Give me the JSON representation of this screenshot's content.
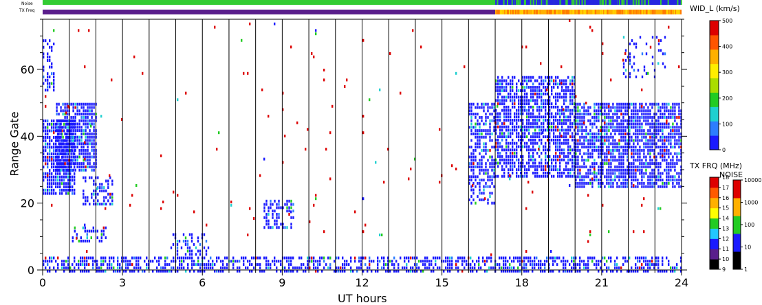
{
  "chart_data": {
    "type": "heatmap",
    "xlabel": "UT hours",
    "ylabel": "Range Gate",
    "x_range": [
      0,
      24
    ],
    "y_range": [
      0,
      75
    ],
    "x_ticks": [
      "0",
      "3",
      "6",
      "9",
      "12",
      "15",
      "18",
      "21",
      "24"
    ],
    "y_ticks": [
      "0",
      "20",
      "40",
      "60"
    ],
    "top_bars": {
      "noise_label": "Noise",
      "txfreq_label": "TX Freq",
      "change_hour": 17,
      "noise_before": "#33cc33",
      "noise_after": "#2626e0",
      "txfreq_before": "#5a1e8c",
      "txfreq_after": "#ffb000"
    },
    "colorbar_width": {
      "title": "WID_L (km/s)",
      "ticks": [
        "0",
        "100",
        "200",
        "300",
        "400",
        "500"
      ],
      "colors": [
        "#1a1aff",
        "#2d7dff",
        "#1fd0d0",
        "#22cc22",
        "#aadd00",
        "#ffee00",
        "#ffb000",
        "#ff5500",
        "#dd0000"
      ]
    },
    "colorbar_txfreq": {
      "title": "TX FRQ (MHz)",
      "ticks": [
        "9",
        "10",
        "11",
        "12",
        "13",
        "14",
        "15",
        "16",
        "17",
        "18"
      ],
      "colors": [
        "#000000",
        "#5a1e8c",
        "#1a1aff",
        "#22c8ff",
        "#22cc22",
        "#ffff00",
        "#ffb000",
        "#ff5a00",
        "#dd0000"
      ]
    },
    "colorbar_noise": {
      "title": "NOISE",
      "ticks": [
        "1",
        "10",
        "100",
        "1000",
        "10000"
      ],
      "colors": [
        "#000000",
        "#1a1aff",
        "#22cc22",
        "#ffb000",
        "#dd0000"
      ]
    },
    "echo_regions": [
      {
        "h0": 0.0,
        "h1": 1.2,
        "g0": 23,
        "g1": 45,
        "density": 0.8
      },
      {
        "h0": 0.5,
        "h1": 2.0,
        "g0": 30,
        "g1": 50,
        "density": 0.8
      },
      {
        "h0": 0.0,
        "h1": 0.4,
        "g0": 54,
        "g1": 69,
        "density": 0.4
      },
      {
        "h0": 1.5,
        "h1": 2.6,
        "g0": 20,
        "g1": 28,
        "density": 0.5
      },
      {
        "h0": 1.1,
        "h1": 2.4,
        "g0": 9,
        "g1": 13,
        "density": 0.5
      },
      {
        "h0": 4.8,
        "h1": 6.2,
        "g0": 5,
        "g1": 11,
        "density": 0.4
      },
      {
        "h0": 8.3,
        "h1": 9.4,
        "g0": 13,
        "g1": 21,
        "density": 0.55
      },
      {
        "h0": 16.0,
        "h1": 17.0,
        "g0": 20,
        "g1": 50,
        "density": 0.55
      },
      {
        "h0": 17.0,
        "h1": 20.0,
        "g0": 28,
        "g1": 58,
        "density": 0.7
      },
      {
        "h0": 20.0,
        "h1": 24.0,
        "g0": 25,
        "g1": 50,
        "density": 0.75
      },
      {
        "h0": 21.8,
        "h1": 23.4,
        "g0": 58,
        "g1": 70,
        "density": 0.2
      },
      {
        "h0": 0.0,
        "h1": 24.0,
        "g0": 0,
        "g1": 4,
        "density": 0.55
      },
      {
        "h0": 0.0,
        "h1": 24.0,
        "g0": 0,
        "g1": 75,
        "density": 0.008
      }
    ]
  }
}
